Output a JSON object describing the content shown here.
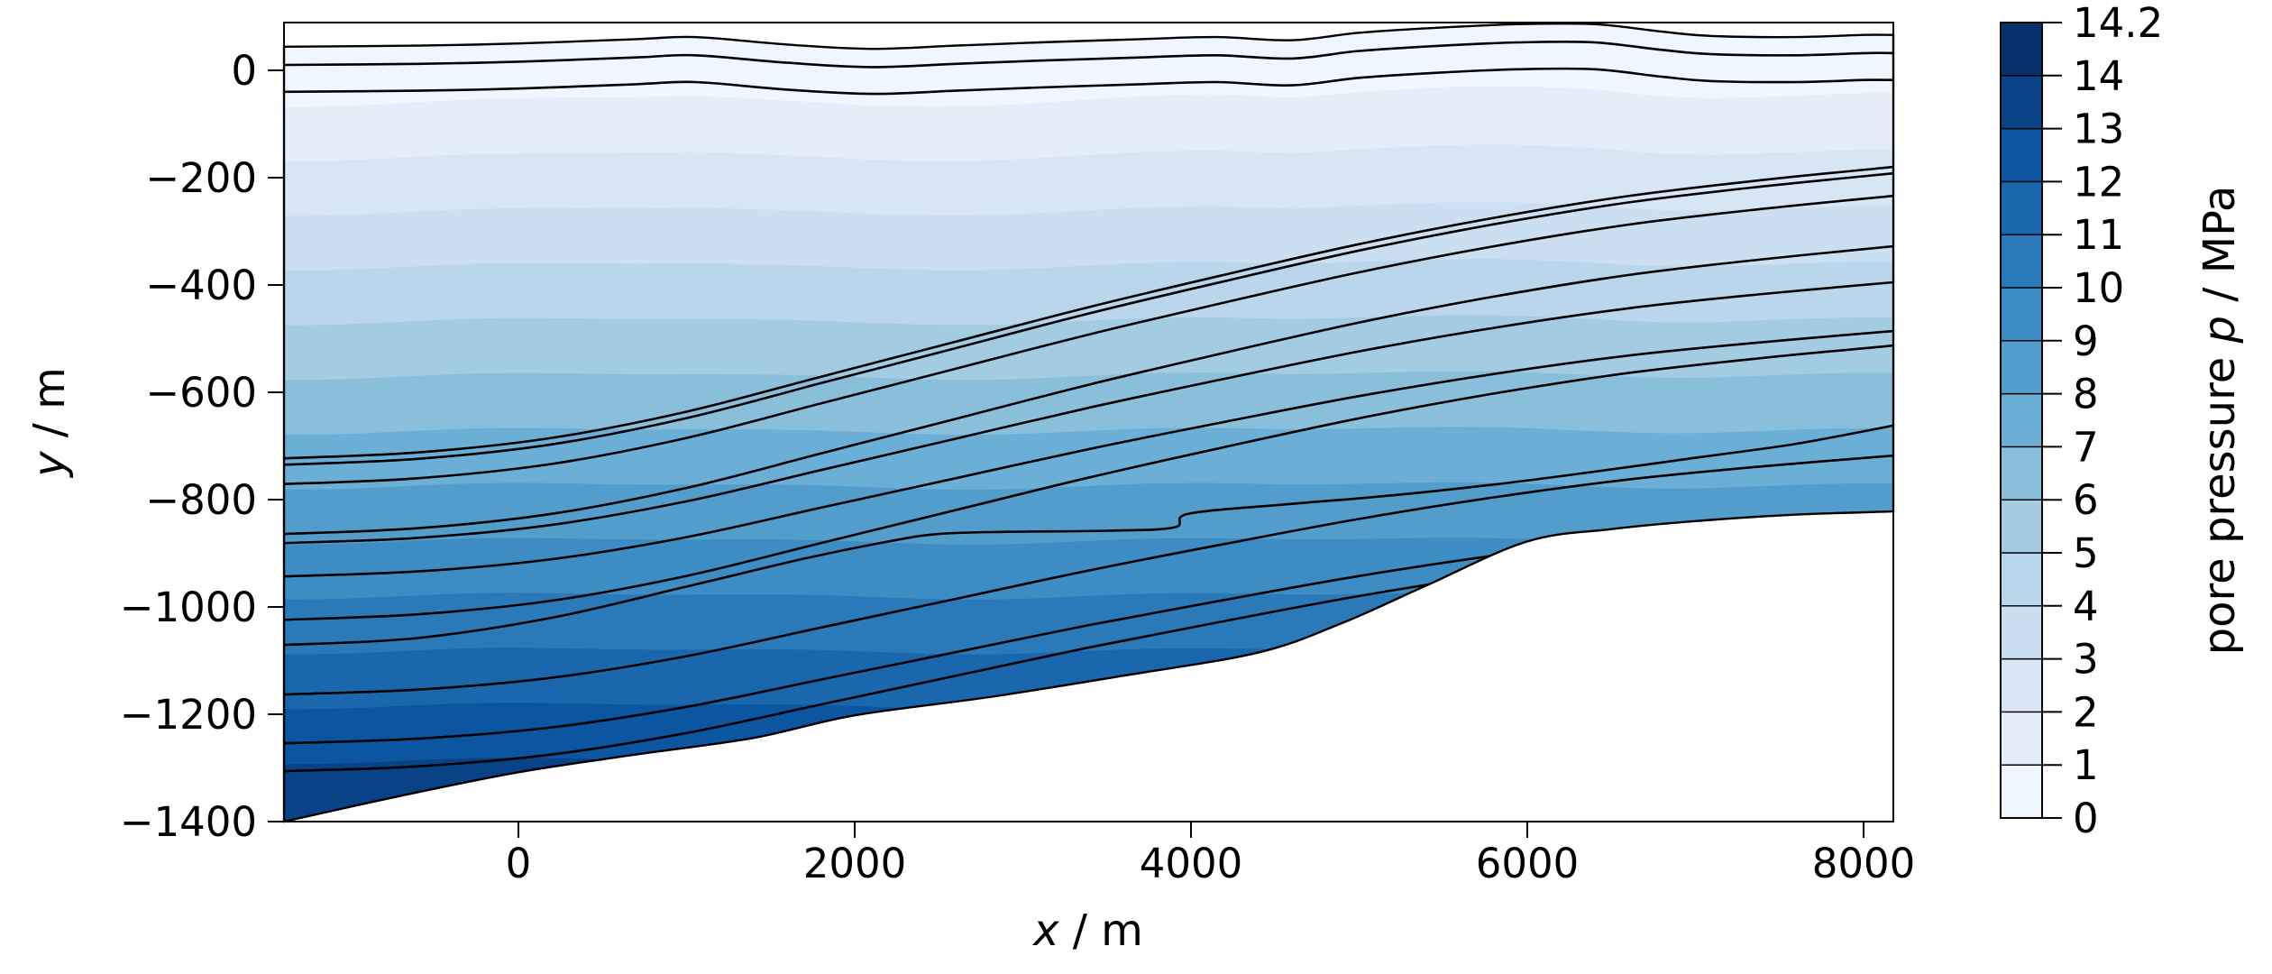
{
  "figure": {
    "background_color": "#ffffff",
    "frame_color": "#000000",
    "contour_line_color": "#000000"
  },
  "labels": {
    "xlabel": {
      "var": "x",
      "rest": " / m"
    },
    "ylabel": {
      "var": "y",
      "rest": " / m"
    },
    "colorbar": {
      "pre": "pore pressure ",
      "var": "p",
      "rest": " / MPa"
    }
  },
  "chart_data": {
    "type": "heatmap",
    "subtype": "filled-contour-geological-cross-section",
    "title": "",
    "xlabel": "x / m",
    "ylabel": "y / m",
    "xlim": [
      -1394,
      8177
    ],
    "ylim": [
      -1400,
      89
    ],
    "grid": false,
    "x_ticks": [
      0,
      2000,
      4000,
      6000,
      8000
    ],
    "y_ticks": [
      0,
      -200,
      -400,
      -600,
      -800,
      -1000,
      -1200,
      -1400
    ],
    "x_tick_labels": [
      "0",
      "2000",
      "4000",
      "6000",
      "8000"
    ],
    "y_tick_labels": [
      "0",
      "−200",
      "−400",
      "−600",
      "−800",
      "−1000",
      "−1200",
      "−1400"
    ],
    "colorbar": {
      "label": "pore pressure p / MPa",
      "position": "right",
      "levels": [
        0,
        1,
        2,
        3,
        4,
        5,
        6,
        7,
        8,
        9,
        10,
        11,
        12,
        13,
        14,
        14.2
      ],
      "tick_labels": [
        "0",
        "1",
        "2",
        "3",
        "4",
        "5",
        "6",
        "7",
        "8",
        "9",
        "10",
        "11",
        "12",
        "13",
        "14",
        "14.2"
      ],
      "colors": [
        "#f0f6fd",
        "#e3eef9",
        "#d7e6f5",
        "#cbdff0",
        "#bad6ea",
        "#a3cbe2",
        "#8abfdc",
        "#6bafd6",
        "#539dcc",
        "#3d8dc4",
        "#2a7ab9",
        "#1a67ae",
        "#0c55a0",
        "#094287",
        "#08306b"
      ]
    },
    "pressure_field": {
      "description": "pore pressure increases nearly hydrostatically with depth",
      "surface_reference_y_m": 45,
      "depth_per_mpa_m": 102.4,
      "max_pressure_mpa": 14.2
    },
    "domain": {
      "top_boundary": [
        [
          -1394,
          44
        ],
        [
          -600,
          46
        ],
        [
          0,
          50
        ],
        [
          700,
          58
        ],
        [
          1050,
          62
        ],
        [
          1600,
          48
        ],
        [
          2100,
          40
        ],
        [
          2600,
          46
        ],
        [
          3100,
          52
        ],
        [
          3700,
          58
        ],
        [
          4150,
          62
        ],
        [
          4600,
          56
        ],
        [
          5000,
          70
        ],
        [
          5500,
          80
        ],
        [
          5950,
          86
        ],
        [
          6400,
          86
        ],
        [
          6800,
          72
        ],
        [
          7100,
          64
        ],
        [
          7600,
          62
        ],
        [
          8000,
          66
        ],
        [
          8177,
          66
        ]
      ],
      "bottom_boundary": [
        [
          -1394,
          -1400
        ],
        [
          -700,
          -1352
        ],
        [
          0,
          -1308
        ],
        [
          700,
          -1275
        ],
        [
          1400,
          -1244
        ],
        [
          2000,
          -1202
        ],
        [
          2800,
          -1168
        ],
        [
          3600,
          -1128
        ],
        [
          4400,
          -1085
        ],
        [
          4900,
          -1030
        ],
        [
          5400,
          -960
        ],
        [
          6000,
          -878
        ],
        [
          6500,
          -855
        ],
        [
          7000,
          -840
        ],
        [
          7600,
          -828
        ],
        [
          8177,
          -822
        ]
      ]
    },
    "layer_horizons": {
      "near_surface_offsets_m": [
        34,
        84
      ],
      "monocline_profile": [
        [
          -1394,
          0
        ],
        [
          -600,
          0.02
        ],
        [
          200,
          0.07
        ],
        [
          1000,
          0.16
        ],
        [
          1800,
          0.28
        ],
        [
          2600,
          0.4
        ],
        [
          3400,
          0.52
        ],
        [
          4200,
          0.63
        ],
        [
          5000,
          0.735
        ],
        [
          5800,
          0.825
        ],
        [
          6600,
          0.9
        ],
        [
          7400,
          0.955
        ],
        [
          8177,
          1.0
        ]
      ],
      "monocline_lines": [
        {
          "left_y_m": -723,
          "right_y_m": -180
        },
        {
          "left_y_m": -735,
          "right_y_m": -192
        },
        {
          "left_y_m": -771,
          "right_y_m": -234
        },
        {
          "left_y_m": -864,
          "right_y_m": -328
        },
        {
          "left_y_m": -881,
          "right_y_m": -395
        },
        {
          "left_y_m": -943,
          "right_y_m": -486
        },
        {
          "left_y_m": -1024,
          "right_y_m": -513
        },
        {
          "left_y_m": -1163,
          "right_y_m": -718
        },
        {
          "left_y_m": -1254,
          "right_y_m": -830
        },
        {
          "left_y_m": -1306,
          "right_y_m": -862
        }
      ],
      "stepped_line": [
        [
          -1394,
          -1071
        ],
        [
          -600,
          -1058
        ],
        [
          200,
          -1020
        ],
        [
          1000,
          -962
        ],
        [
          1700,
          -910
        ],
        [
          2200,
          -878
        ],
        [
          2500,
          -864
        ],
        [
          2900,
          -860
        ],
        [
          3500,
          -858
        ],
        [
          3900,
          -852
        ],
        [
          3990,
          -826
        ],
        [
          4600,
          -808
        ],
        [
          5200,
          -792
        ],
        [
          5800,
          -772
        ],
        [
          6400,
          -748
        ],
        [
          7000,
          -722
        ],
        [
          7600,
          -696
        ],
        [
          8177,
          -662
        ]
      ]
    }
  }
}
